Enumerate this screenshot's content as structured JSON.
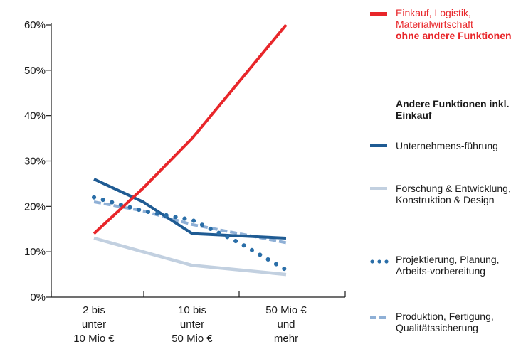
{
  "chart_data": {
    "type": "line",
    "title": "",
    "xlabel": "",
    "ylabel": "",
    "categories": [
      "2 bis unter 10 Mio €",
      "10 bis unter 50 Mio €",
      "50 Mio € und mehr"
    ],
    "category_lines": [
      [
        "2 bis",
        "unter",
        "10 Mio €"
      ],
      [
        "10 bis",
        "unter",
        "50 Mio €"
      ],
      [
        "50 Mio €",
        "und",
        "mehr"
      ]
    ],
    "ylim": [
      0,
      60
    ],
    "yticks": [
      0,
      10,
      20,
      30,
      40,
      50,
      60
    ],
    "ytick_labels": [
      "0%",
      "10%",
      "20%",
      "30%",
      "40%",
      "50%",
      "60%"
    ],
    "grid": false,
    "legend_position": "right",
    "legend_group_heading": "Andere Funktionen inkl. Einkauf",
    "series": [
      {
        "name": "Einkauf, Logistik, Materialwirtschaft",
        "note": "ohne andere Funktionen",
        "x": [
          0,
          0.5,
          1,
          2
        ],
        "values": [
          14,
          24,
          35,
          60
        ],
        "color": "#e8262a",
        "style": "solid"
      },
      {
        "name": "Unternehmens-führung",
        "x": [
          0,
          0.5,
          1,
          2
        ],
        "values": [
          26,
          21,
          14,
          13
        ],
        "color": "#1f5b93",
        "style": "solid"
      },
      {
        "name": "Forschung & Entwicklung, Konstruktion & Design",
        "x": [
          0,
          0.5,
          1,
          2
        ],
        "values": [
          13,
          10,
          7,
          5
        ],
        "color": "#c2d0e0",
        "style": "solid"
      },
      {
        "name": "Projektierung, Planung, Arbeits-vorbereitung",
        "x": [
          0,
          0.5,
          1,
          1.5,
          2
        ],
        "values": [
          22,
          19,
          17,
          12,
          6
        ],
        "color": "#2a6ea8",
        "style": "dotted"
      },
      {
        "name": "Produktion, Fertigung, Qualitätssicherung",
        "x": [
          0,
          0.5,
          1,
          2
        ],
        "values": [
          21,
          19,
          16,
          12
        ],
        "color": "#8fb0d6",
        "style": "dashed"
      }
    ]
  }
}
